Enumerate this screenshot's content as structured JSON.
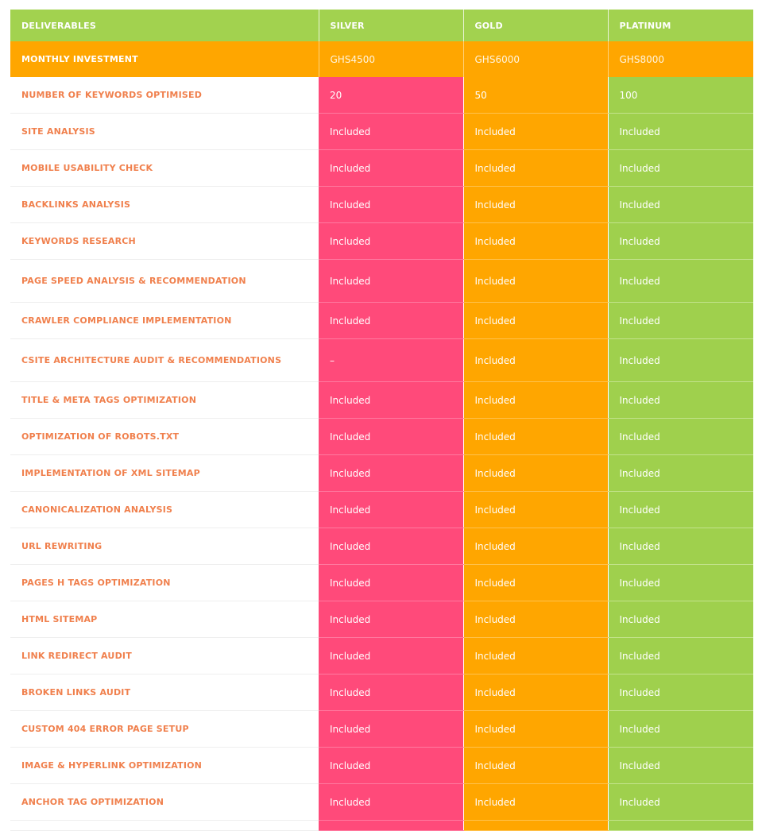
{
  "table": {
    "headers": [
      "DELIVERABLES",
      "SILVER",
      "GOLD",
      "PLATINUM"
    ],
    "investment": {
      "label": "MONTHLY INVESTMENT",
      "silver": "GHS4500",
      "gold": "GHS6000",
      "platinum": "GHS8000"
    },
    "rows": [
      {
        "label": "NUMBER OF KEYWORDS OPTIMISED",
        "silver": "20",
        "gold": "50",
        "platinum": "100"
      },
      {
        "label": "SITE ANALYSIS",
        "silver": "Included",
        "gold": "Included",
        "platinum": "Included"
      },
      {
        "label": "MOBILE USABILITY CHECK",
        "silver": "Included",
        "gold": "Included",
        "platinum": "Included"
      },
      {
        "label": "BACKLINKS ANALYSIS",
        "silver": "Included",
        "gold": "Included",
        "platinum": "Included"
      },
      {
        "label": "KEYWORDS RESEARCH",
        "silver": "Included",
        "gold": "Included",
        "platinum": "Included"
      },
      {
        "label": "PAGE SPEED ANALYSIS & RECOMMENDATION",
        "silver": "Included",
        "gold": "Included",
        "platinum": "Included"
      },
      {
        "label": "CRAWLER COMPLIANCE IMPLEMENTATION",
        "silver": "Included",
        "gold": "Included",
        "platinum": "Included"
      },
      {
        "label": "CSITE ARCHITECTURE AUDIT & RECOMMENDATIONS",
        "silver": "–",
        "gold": "Included",
        "platinum": "Included"
      },
      {
        "label": "TITLE & META TAGS OPTIMIZATION",
        "silver": "Included",
        "gold": "Included",
        "platinum": "Included"
      },
      {
        "label": "OPTIMIZATION OF ROBOTS.TXT",
        "silver": "Included",
        "gold": "Included",
        "platinum": "Included"
      },
      {
        "label": "IMPLEMENTATION OF XML SITEMAP",
        "silver": "Included",
        "gold": "Included",
        "platinum": "Included"
      },
      {
        "label": "CANONICALIZATION ANALYSIS",
        "silver": "Included",
        "gold": "Included",
        "platinum": "Included"
      },
      {
        "label": "URL REWRITING",
        "silver": "Included",
        "gold": "Included",
        "platinum": "Included"
      },
      {
        "label": "PAGES H TAGS OPTIMIZATION",
        "silver": "Included",
        "gold": "Included",
        "platinum": "Included"
      },
      {
        "label": "HTML SITEMAP",
        "silver": "Included",
        "gold": "Included",
        "platinum": "Included"
      },
      {
        "label": "LINK REDIRECT AUDIT",
        "silver": "Included",
        "gold": "Included",
        "platinum": "Included"
      },
      {
        "label": "BROKEN LINKS AUDIT",
        "silver": "Included",
        "gold": "Included",
        "platinum": "Included"
      },
      {
        "label": "CUSTOM 404 ERROR PAGE SETUP",
        "silver": "Included",
        "gold": "Included",
        "platinum": "Included"
      },
      {
        "label": "IMAGE & HYPERLINK OPTIMIZATION",
        "silver": "Included",
        "gold": "Included",
        "platinum": "Included"
      },
      {
        "label": "ANCHOR TAG OPTIMIZATION",
        "silver": "Included",
        "gold": "Included",
        "platinum": "Included"
      }
    ]
  },
  "colors": {
    "header_green": "#a2d24f",
    "investment_orange": "#ffa600",
    "silver_pink": "#ff4a7a",
    "gold_orange": "#ffa600",
    "platinum_green": "#9fd04d",
    "label_text": "#f0804d"
  }
}
